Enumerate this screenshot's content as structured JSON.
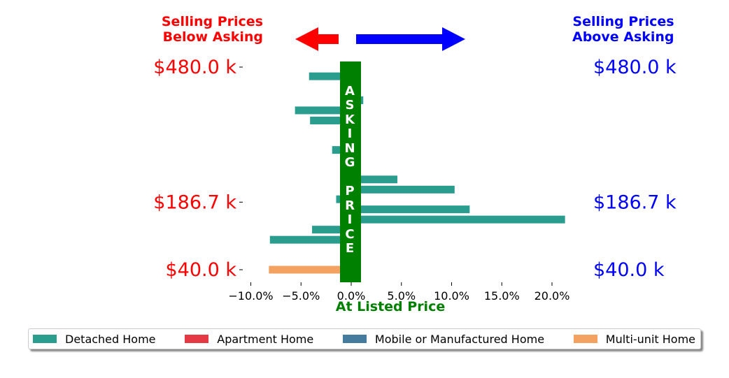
{
  "header": {
    "left_line1": "Selling Prices",
    "left_line2": "Below Asking",
    "right_line1": "Selling Prices",
    "right_line2": "Above Asking"
  },
  "colors": {
    "below": "#ff0000",
    "above": "#0000ff",
    "asking_bar": "#008000",
    "detached": "#2a9d8f",
    "apartment": "#e63946",
    "mobile": "#457b9d",
    "multi": "#f4a261"
  },
  "asking_label": "ASKING PRICE",
  "chart_data": {
    "type": "bar",
    "orientation": "horizontal",
    "xlabel": "At Listed Price",
    "x_ticks": [
      "−10.0%",
      "−5.0%",
      "0.0%",
      "5.0%",
      "10.0%",
      "15.0%",
      "20.0%"
    ],
    "x_tick_values": [
      -10,
      -5,
      0,
      5,
      10,
      15,
      20
    ],
    "xlim": [
      -12,
      23
    ],
    "y_tick_labels": [
      "$480.0 k",
      "$186.7 k",
      "$40.0 k"
    ],
    "ylim": [
      40,
      480
    ],
    "y_tick_values": [
      480,
      186.7,
      40
    ],
    "series": [
      {
        "name": "Detached Home",
        "color": "#2a9d8f",
        "points": [
          {
            "price": 460,
            "pct": -4.2
          },
          {
            "price": 440,
            "pct": 0.6
          },
          {
            "price": 426,
            "pct": 0.6
          },
          {
            "price": 408,
            "pct": 1.2
          },
          {
            "price": 386,
            "pct": -5.6
          },
          {
            "price": 364,
            "pct": -4.1
          },
          {
            "price": 342,
            "pct": 0.9
          },
          {
            "price": 322,
            "pct": 0.4
          },
          {
            "price": 300,
            "pct": -1.9
          },
          {
            "price": 280,
            "pct": 0.5
          },
          {
            "price": 258,
            "pct": 0.5
          },
          {
            "price": 236,
            "pct": 4.6
          },
          {
            "price": 214,
            "pct": 10.3
          },
          {
            "price": 193,
            "pct": -1.5
          },
          {
            "price": 171,
            "pct": 11.8
          },
          {
            "price": 149,
            "pct": 21.3
          },
          {
            "price": 127,
            "pct": -3.9
          },
          {
            "price": 105,
            "pct": -8.1
          },
          {
            "price": 83,
            "pct": 0.5
          }
        ]
      },
      {
        "name": "Apartment Home",
        "color": "#e63946",
        "points": [
          {
            "price": 62,
            "pct": 0.3
          }
        ]
      },
      {
        "name": "Mobile or Manufactured Home",
        "color": "#457b9d",
        "points": []
      },
      {
        "name": "Multi-unit Home",
        "color": "#f4a261",
        "points": [
          {
            "price": 40,
            "pct": -8.2
          }
        ]
      }
    ],
    "legend_position": "bottom",
    "grid": false
  }
}
